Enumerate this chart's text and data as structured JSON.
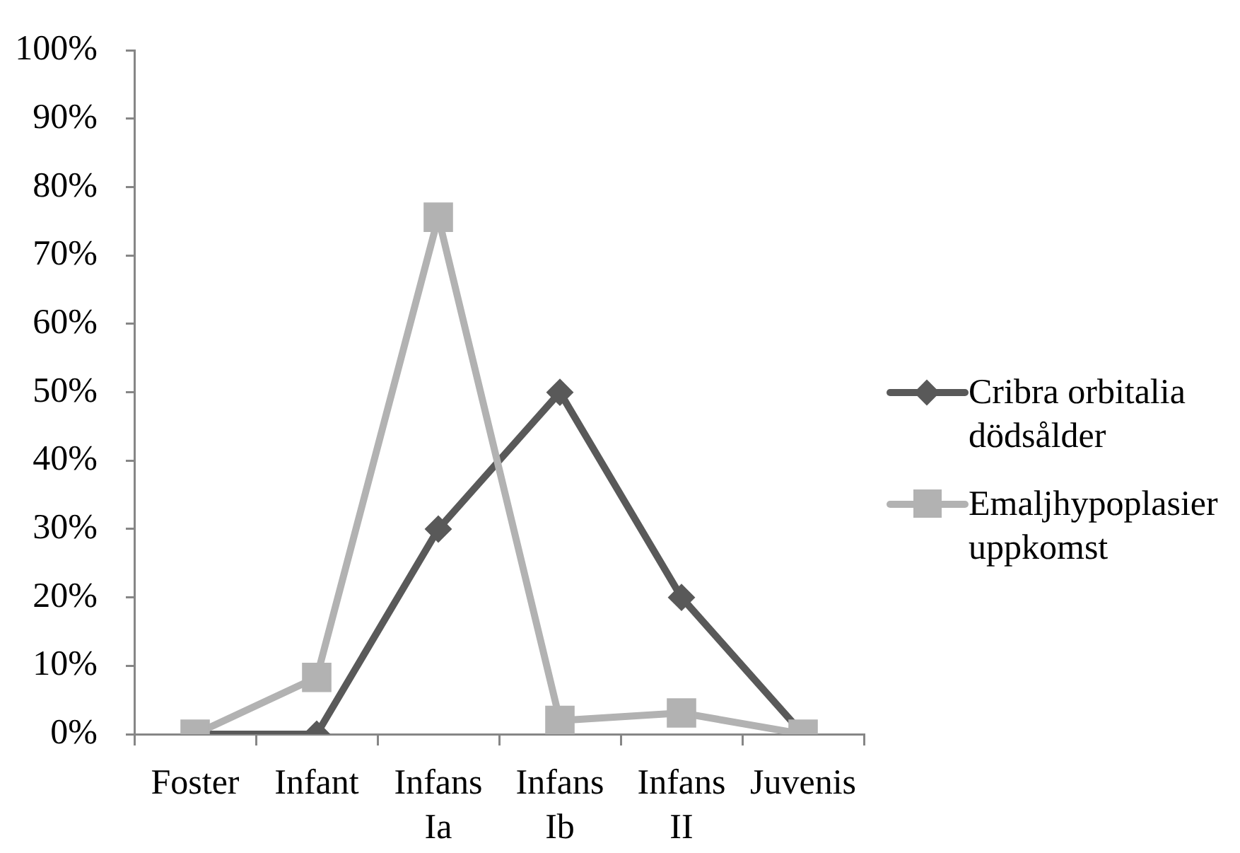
{
  "chart_data": {
    "type": "line",
    "categories": [
      "Foster",
      "Infant",
      "Infans Ia",
      "Infans Ib",
      "Infans II",
      "Juvenis"
    ],
    "series": [
      {
        "name": "Cribra orbitalia dödsålder",
        "color": "#595959",
        "marker": "diamond",
        "values": [
          0,
          0,
          30,
          50,
          20,
          0
        ]
      },
      {
        "name": "Emaljhypoplasier uppkomst",
        "color": "#b2b2b2",
        "marker": "square",
        "values": [
          0,
          8.3,
          75.6,
          2,
          3.1,
          0
        ]
      }
    ],
    "ylim": [
      0,
      100
    ],
    "yticks": [
      {
        "value": 0,
        "label": "0%"
      },
      {
        "value": 10,
        "label": "10%"
      },
      {
        "value": 20,
        "label": "20%"
      },
      {
        "value": 30,
        "label": "30%"
      },
      {
        "value": 40,
        "label": "40%"
      },
      {
        "value": 50,
        "label": "50%"
      },
      {
        "value": 60,
        "label": "60%"
      },
      {
        "value": 70,
        "label": "70%"
      },
      {
        "value": 80,
        "label": "80%"
      },
      {
        "value": 90,
        "label": "90%"
      },
      {
        "value": 100,
        "label": "100%"
      }
    ],
    "legend": "right"
  }
}
